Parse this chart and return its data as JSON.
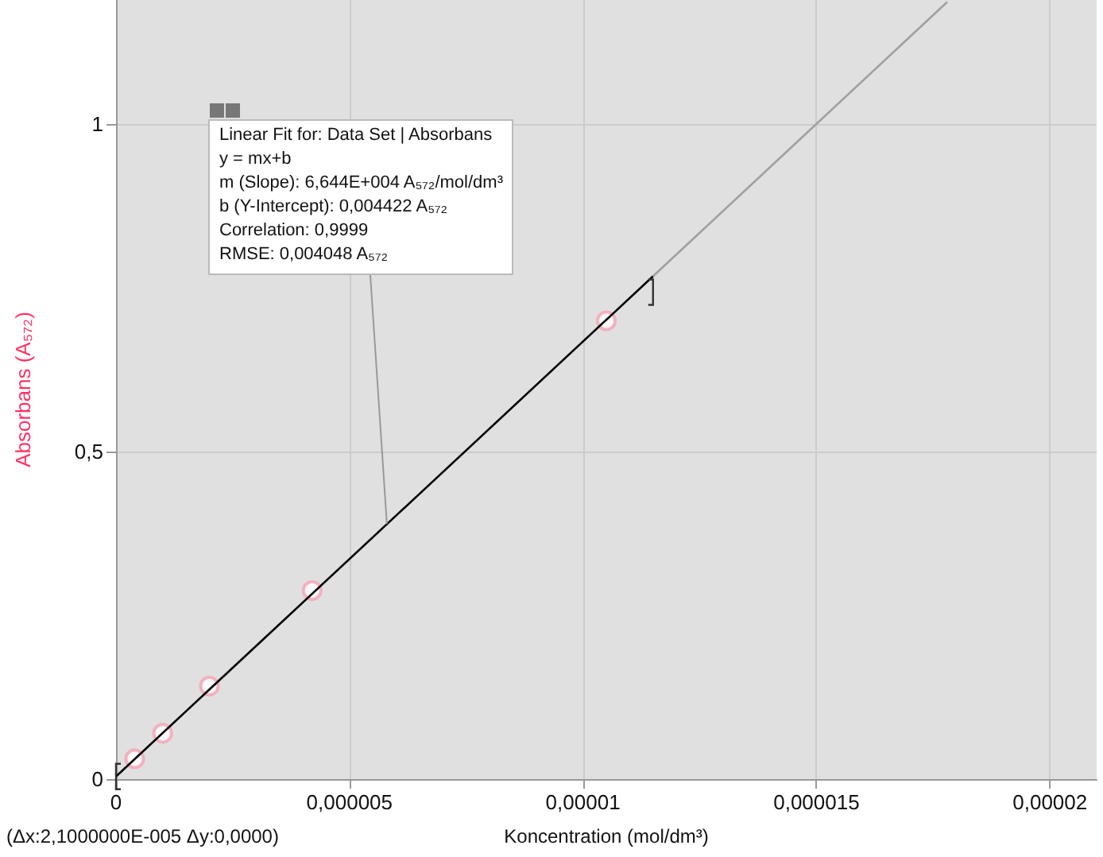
{
  "chart_data": {
    "type": "scatter",
    "xlabel": "Koncentration (mol/dm³)",
    "ylabel": "Absorbans (A₅₇₂)",
    "xlim": [
      0,
      2.1e-05
    ],
    "ylim": [
      0,
      1.19
    ],
    "xticks": [
      {
        "value": 0,
        "label": "0"
      },
      {
        "value": 5e-06,
        "label": "0,000005"
      },
      {
        "value": 1e-05,
        "label": "0,00001"
      },
      {
        "value": 1.5e-05,
        "label": "0,000015"
      },
      {
        "value": 2e-05,
        "label": "0,00002"
      }
    ],
    "yticks": [
      0,
      {
        "value": 0.5,
        "label": "0,5"
      },
      1
    ],
    "grid": true,
    "series": [
      {
        "marker": "circle",
        "color": "#f4a3b4",
        "x": [
          4e-07,
          1e-06,
          2e-06,
          4.2e-06,
          1.05e-05
        ],
        "values": [
          0.031,
          0.07,
          0.142,
          0.288,
          0.7
        ]
      },
      {
        "type": "line",
        "marker": "none",
        "color": "#000000",
        "line_style": "solid",
        "x": [
          0,
          1.15e-05
        ],
        "values": [
          0.004,
          0.768
        ]
      },
      {
        "type": "line",
        "marker": "none",
        "color": "#a0a0a0",
        "line_style": "solid",
        "x": [
          1.15e-05,
          1.78e-05
        ],
        "values": [
          0.768,
          1.187
        ]
      }
    ],
    "annotations": [
      {
        "text": "Linear Fit for: Data Set | Absorbans\ny = mx+b\nm (Slope): 6,644E+004 A₅₇₂/mol/dm³\nb (Y-Intercept): 0,004422 A₅₇₂\nCorrelation: 0,9999\nRMSE: 0,004048 A₅₇₂",
        "x": 5.8e-06,
        "y": 0.39
      },
      "(Δx:2,1000000E-005 Δy:0,0000)"
    ]
  }
}
